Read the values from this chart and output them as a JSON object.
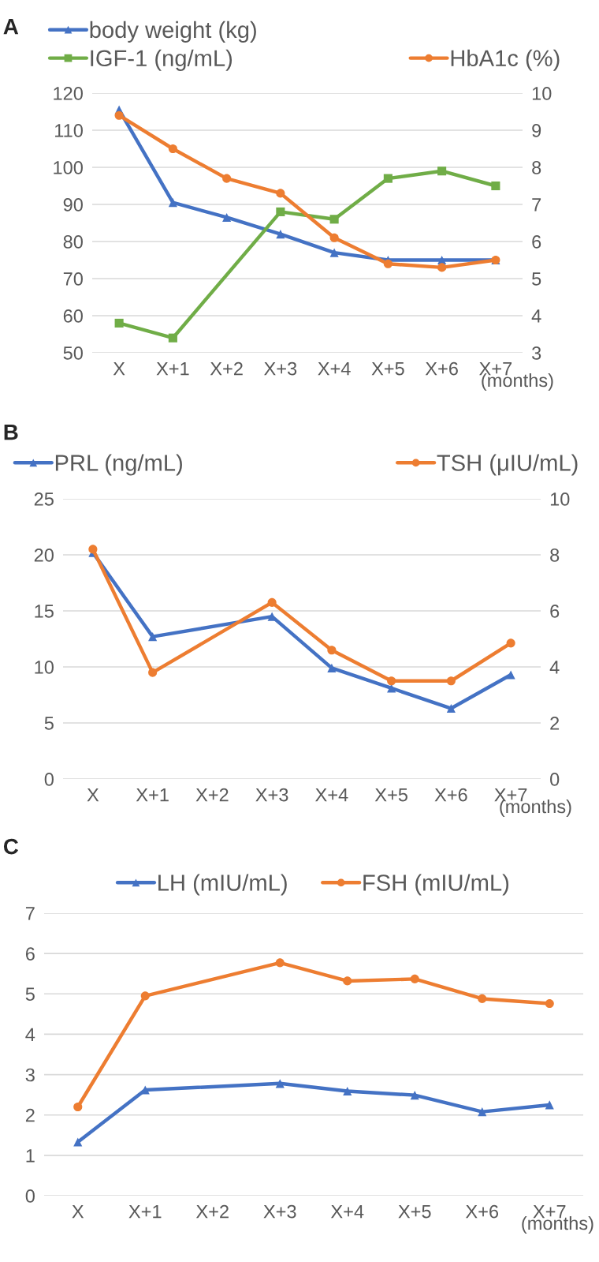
{
  "chart_data": [
    {
      "type": "line",
      "title": "A",
      "categories": [
        "X",
        "X+1",
        "X+2",
        "X+3",
        "X+4",
        "X+5",
        "X+6",
        "X+7"
      ],
      "series": [
        {
          "name": "body weight (kg)",
          "color": "#4472c4",
          "marker": "triangle",
          "values": [
            115.5,
            90.5,
            86.5,
            82,
            77,
            75,
            75,
            75
          ]
        },
        {
          "name": "IGF-1 (ng/mL)",
          "color": "#70ad47",
          "marker": "square",
          "values": [
            58,
            54,
            null,
            88,
            86,
            97,
            99,
            95
          ]
        },
        {
          "name": "HbA1c (%)",
          "color": "#ed7d31",
          "marker": "circle",
          "axis": "y2",
          "values": [
            9.4,
            8.5,
            7.7,
            7.3,
            6.1,
            5.4,
            5.3,
            5.5
          ]
        }
      ],
      "ylim": [
        50,
        120
      ],
      "yticks": [
        50,
        60,
        70,
        80,
        90,
        100,
        110,
        120
      ],
      "y2lim": [
        3,
        10
      ],
      "y2ticks": [
        3,
        4,
        5,
        6,
        7,
        8,
        9,
        10
      ],
      "grid": "y",
      "legend": "top",
      "annotations": [
        "(months)"
      ]
    },
    {
      "type": "line",
      "title": "B",
      "categories": [
        "X",
        "X+1",
        "X+2",
        "X+3",
        "X+4",
        "X+5",
        "X+6",
        "X+7"
      ],
      "series": [
        {
          "name": "PRL (ng/mL)",
          "color": "#4472c4",
          "marker": "triangle",
          "values": [
            20.2,
            12.7,
            null,
            14.5,
            9.9,
            8.1,
            6.3,
            9.3
          ]
        },
        {
          "name": "TSH (μIU/mL)",
          "color": "#ed7d31",
          "marker": "circle",
          "axis": "y2",
          "values": [
            8.2,
            3.8,
            null,
            6.3,
            4.6,
            3.5,
            3.5,
            4.85
          ]
        }
      ],
      "ylim": [
        0,
        25
      ],
      "yticks": [
        0,
        5,
        10,
        15,
        20,
        25
      ],
      "y2lim": [
        0,
        10
      ],
      "y2ticks": [
        0,
        2,
        4,
        6,
        8,
        10
      ],
      "grid": "y",
      "legend": "top",
      "annotations": [
        "(months)"
      ]
    },
    {
      "type": "line",
      "title": "C",
      "categories": [
        "X",
        "X+1",
        "X+2",
        "X+3",
        "X+4",
        "X+5",
        "X+6",
        "X+7"
      ],
      "series": [
        {
          "name": "LH (mIU/mL)",
          "color": "#4472c4",
          "marker": "triangle",
          "values": [
            1.33,
            2.62,
            null,
            2.78,
            2.59,
            2.49,
            2.08,
            2.25
          ]
        },
        {
          "name": "FSH (mIU/mL)",
          "color": "#ed7d31",
          "marker": "circle",
          "values": [
            2.2,
            4.95,
            null,
            5.77,
            5.32,
            5.37,
            4.88,
            4.76
          ]
        }
      ],
      "ylim": [
        0,
        7
      ],
      "yticks": [
        0,
        1,
        2,
        3,
        4,
        5,
        6,
        7
      ],
      "grid": "y",
      "legend": "top",
      "annotations": [
        "(months)"
      ]
    }
  ]
}
